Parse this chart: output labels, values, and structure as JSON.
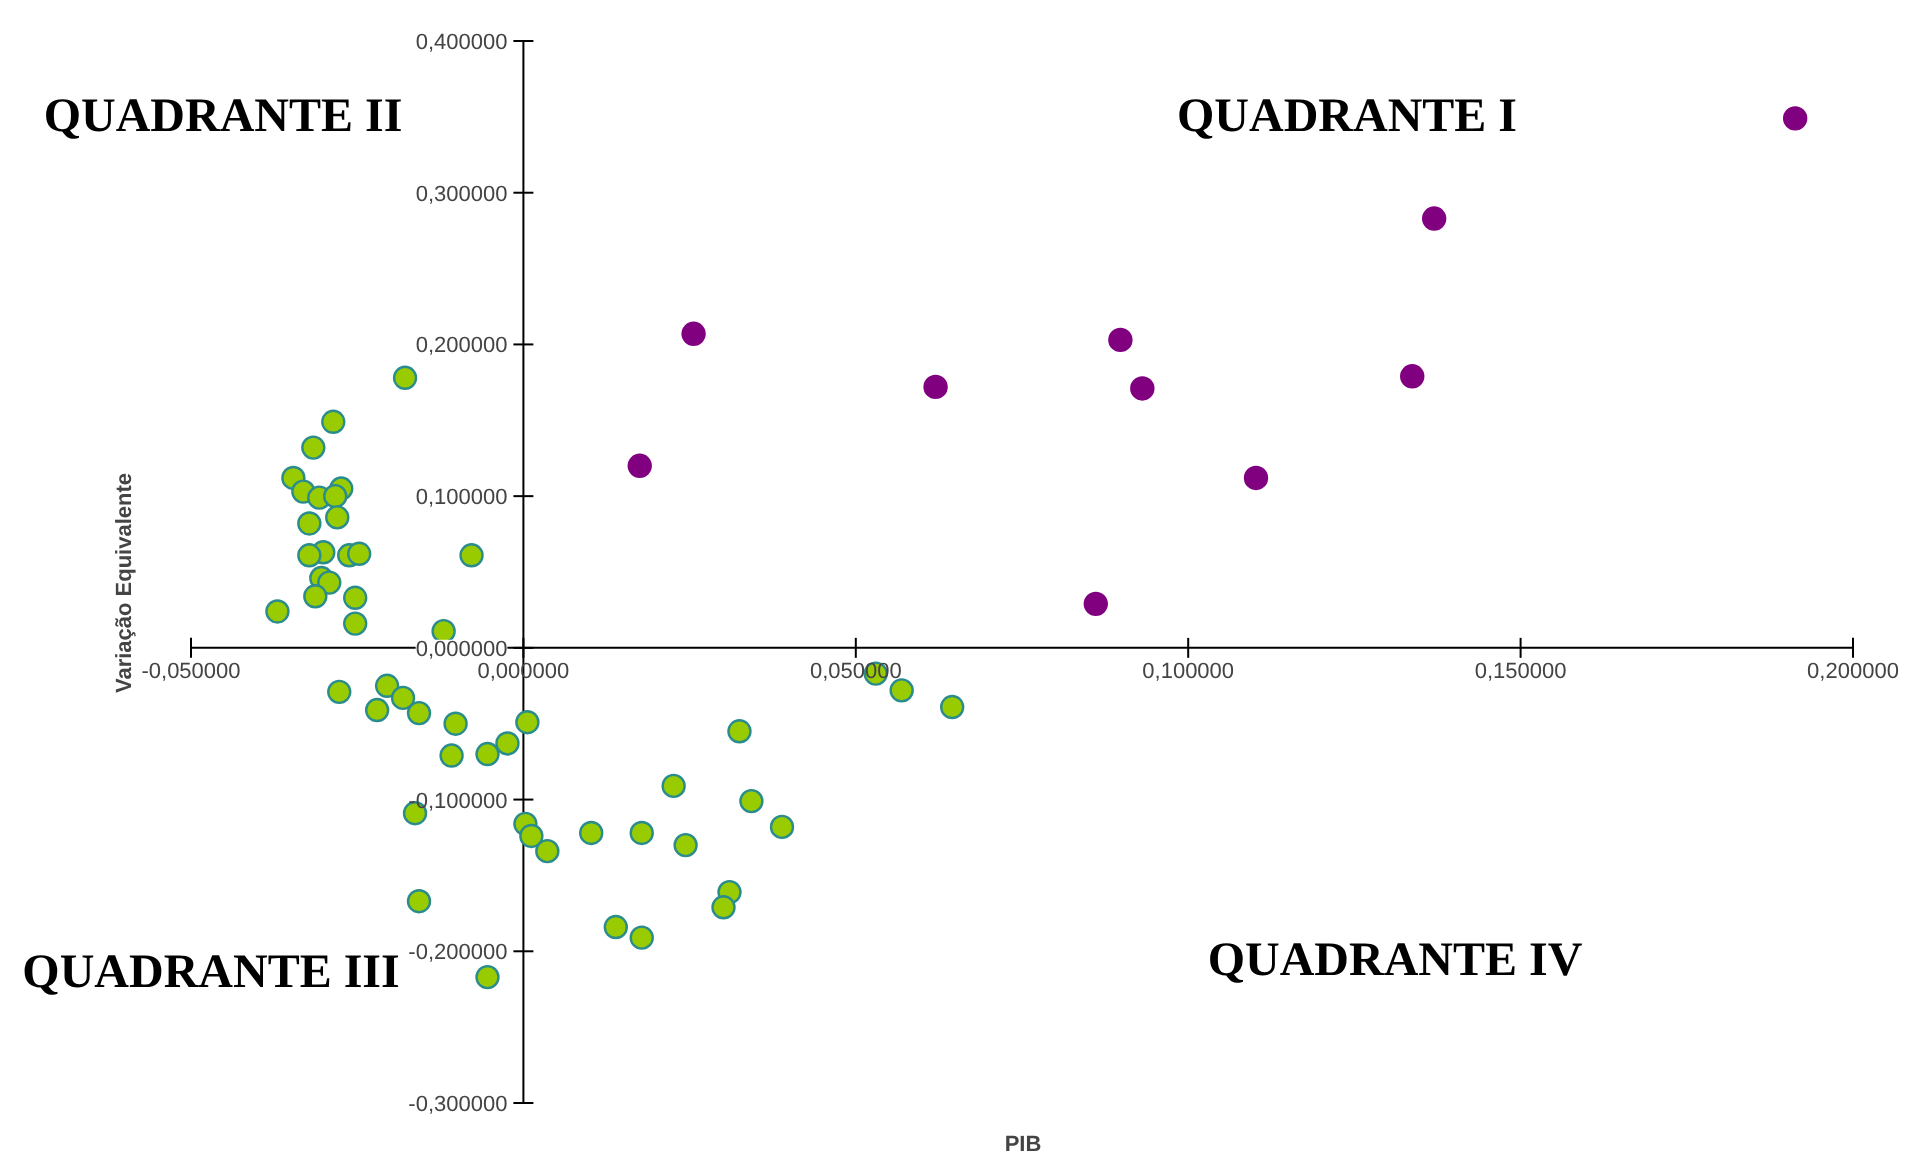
{
  "chart_data": {
    "type": "scatter",
    "xlabel": "PIB",
    "ylabel": "Variação Equivalente",
    "annotations": [
      "QUADRANTE II",
      "QUADRANTE I",
      "QUADRANTE III",
      "QUADRANTE IV"
    ],
    "marker": "circle",
    "grid": false,
    "xlim": [
      -0.05,
      0.2
    ],
    "ylim": [
      -0.3,
      0.4
    ],
    "xticks": [
      {
        "value": -0.05,
        "label": "-0,050000"
      },
      {
        "value": 0,
        "label": "0,000000"
      },
      {
        "value": 0.05,
        "label": "0,050000"
      },
      {
        "value": 0.1,
        "label": "0,100000"
      },
      {
        "value": 0.15,
        "label": "0,150000"
      },
      {
        "value": 0.2,
        "label": "0,200000"
      }
    ],
    "yticks": [
      {
        "value": -0.3,
        "label": "-0,300000"
      },
      {
        "value": -0.2,
        "label": "-0,200000"
      },
      {
        "value": -0.1,
        "label": "-0,100000"
      },
      {
        "value": 0,
        "label": "0,000000"
      },
      {
        "value": 0.1,
        "label": "0,100000"
      },
      {
        "value": 0.2,
        "label": "0,200000"
      },
      {
        "value": 0.3,
        "label": "0,300000"
      },
      {
        "value": 0.4,
        "label": "0,400000"
      }
    ],
    "series": [
      {
        "color": "#99cc00",
        "x": [
          -0.0178,
          -0.0286,
          -0.0316,
          -0.0346,
          -0.0331,
          -0.0307,
          -0.0274,
          -0.0283,
          -0.028,
          -0.0322,
          -0.0301,
          -0.0322,
          -0.0262,
          -0.0247,
          -0.0304,
          -0.0292,
          -0.0313,
          -0.0253,
          -0.0253,
          -0.037,
          -0.0078,
          -0.012,
          -0.0277,
          -0.0205,
          -0.022,
          -0.0181,
          -0.0157,
          -0.0102,
          -0.0108,
          -0.0054,
          -0.0024,
          0.0006,
          -0.0163,
          0.0003,
          0.0012,
          0.0036,
          0.0102,
          -0.0157,
          -0.0054,
          0.053,
          0.0569,
          0.0645,
          0.0325,
          0.0226,
          0.0343,
          0.0389,
          0.0178,
          0.0244,
          0.031,
          0.0301,
          0.0139,
          0.0178
        ],
        "values": [
          0.178,
          0.149,
          0.132,
          0.112,
          0.103,
          0.099,
          0.105,
          0.1,
          0.086,
          0.082,
          0.063,
          0.061,
          0.061,
          0.062,
          0.046,
          0.043,
          0.034,
          0.033,
          0.016,
          0.024,
          0.061,
          0.011,
          -0.029,
          -0.025,
          -0.041,
          -0.033,
          -0.043,
          -0.05,
          -0.071,
          -0.07,
          -0.063,
          -0.049,
          -0.109,
          -0.116,
          -0.124,
          -0.134,
          -0.122,
          -0.167,
          -0.217,
          -0.017,
          -0.028,
          -0.039,
          -0.055,
          -0.091,
          -0.101,
          -0.118,
          -0.122,
          -0.13,
          -0.161,
          -0.171,
          -0.184,
          -0.191
        ]
      },
      {
        "color": "#800080",
        "x": [
          0.0175,
          0.0256,
          0.062,
          0.0898,
          0.0931,
          0.0861,
          0.1102,
          0.1337,
          0.137,
          0.1913
        ],
        "values": [
          0.12,
          0.207,
          0.172,
          0.203,
          0.171,
          0.029,
          0.112,
          0.179,
          0.283,
          0.349
        ]
      }
    ]
  }
}
